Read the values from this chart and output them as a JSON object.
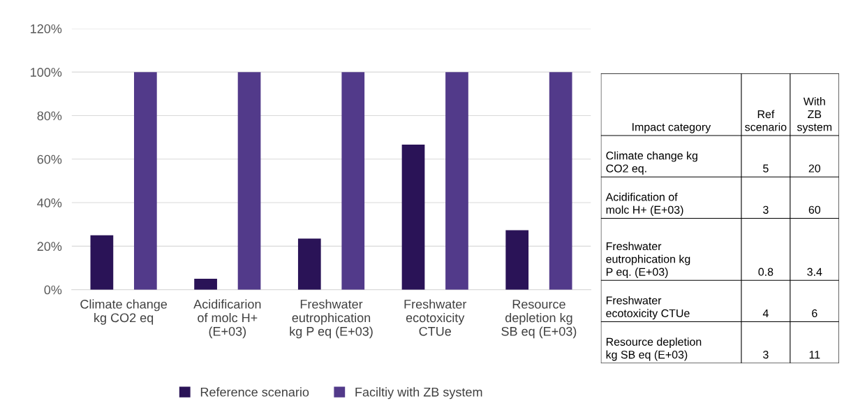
{
  "chart_data": [
    {
      "type": "bar",
      "categories": [
        "Climate change kg CO2 eq",
        "Acidificarion of molc H+ (E+03)",
        "Freshwater eutrophication kg P eq (E+03)",
        "Freshwater ecotoxicity CTUe",
        "Resource depletion kg SB eq (E+03)"
      ],
      "series": [
        {
          "name": "Reference scenario",
          "color": "#2a1357",
          "values": [
            25,
            5,
            23.5,
            66.7,
            27.3
          ]
        },
        {
          "name": "Faciltiy with ZB system",
          "color": "#523a8a",
          "values": [
            100,
            100,
            100,
            100,
            100
          ]
        }
      ],
      "ylim": [
        0,
        120
      ],
      "yticks": [
        {
          "value": 0,
          "label": "0%"
        },
        {
          "value": 20,
          "label": "20%"
        },
        {
          "value": 40,
          "label": "40%"
        },
        {
          "value": 60,
          "label": "60%"
        },
        {
          "value": 80,
          "label": "80%"
        },
        {
          "value": 100,
          "label": "100%"
        },
        {
          "value": 120,
          "label": "120%"
        }
      ],
      "grid": "y",
      "legend": "bottom"
    },
    {
      "type": "other",
      "categories": [
        "Climate change kg CO2 eq.",
        "Acidification of molc H+ (E+03)",
        "Freshwater eutrophication kg P eq. (E+03)",
        "Freshwater ecotoxicity CTUe",
        "Resource depletion kg SB eq (E+03)"
      ],
      "series": [
        {
          "name": "Ref scenario",
          "values": [
            5,
            3,
            0.8,
            4,
            3
          ]
        },
        {
          "name": "With ZB system",
          "values": [
            20,
            60,
            3.4,
            6,
            11
          ]
        }
      ],
      "annotations": [
        "Impact category"
      ],
      "data_labels": true
    }
  ]
}
